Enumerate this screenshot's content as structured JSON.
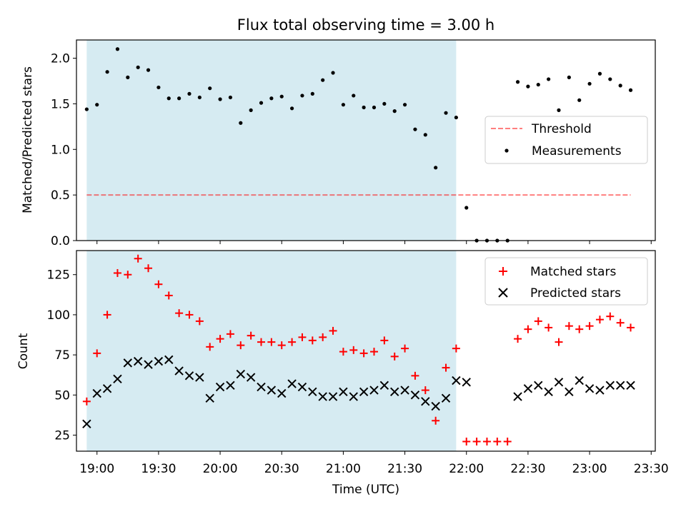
{
  "colors": {
    "shade": "#add8e6",
    "threshold": "#ff0000",
    "measurement": "#000000",
    "matched": "#ff0000",
    "predicted": "#000000"
  },
  "chart_data": [
    {
      "type": "scatter",
      "title": "Flux total observing time = 3.00 h",
      "ylabel": "Matched/Predicted stars",
      "xlabel": "",
      "xlim": [
        "18:50",
        "23:32"
      ],
      "ylim": [
        0,
        2.2
      ],
      "yticks": [
        "0.0",
        "0.5",
        "1.0",
        "1.5",
        "2.0"
      ],
      "ytick_values": [
        0,
        0.5,
        1.0,
        1.5,
        2.0
      ],
      "shaded_region": [
        "18:55",
        "21:55"
      ],
      "threshold": {
        "name": "Threshold",
        "y": 0.5,
        "x_start": "18:55",
        "x_end": "23:20",
        "style": "dashed"
      },
      "series": [
        {
          "name": "Measurements",
          "x": [
            "18:55",
            "19:00",
            "19:05",
            "19:10",
            "19:15",
            "19:20",
            "19:25",
            "19:30",
            "19:35",
            "19:40",
            "19:45",
            "19:50",
            "19:55",
            "20:00",
            "20:05",
            "20:10",
            "20:15",
            "20:20",
            "20:25",
            "20:30",
            "20:35",
            "20:40",
            "20:45",
            "20:50",
            "20:55",
            "21:00",
            "21:05",
            "21:10",
            "21:15",
            "21:20",
            "21:25",
            "21:30",
            "21:35",
            "21:40",
            "21:45",
            "21:50",
            "21:55",
            "22:00",
            "22:05",
            "22:10",
            "22:15",
            "22:20",
            "22:25",
            "22:30",
            "22:35",
            "22:40",
            "22:45",
            "22:50",
            "22:55",
            "23:00",
            "23:05",
            "23:10",
            "23:15",
            "23:20"
          ],
          "y": [
            1.44,
            1.49,
            1.85,
            2.1,
            1.79,
            1.9,
            1.87,
            1.68,
            1.56,
            1.56,
            1.61,
            1.57,
            1.67,
            1.55,
            1.57,
            1.29,
            1.43,
            1.51,
            1.56,
            1.58,
            1.45,
            1.59,
            1.61,
            1.76,
            1.84,
            1.49,
            1.59,
            1.46,
            1.46,
            1.5,
            1.42,
            1.49,
            1.22,
            1.16,
            0.8,
            1.4,
            1.35,
            0.36,
            0.0,
            0.0,
            0.0,
            0.0,
            1.74,
            1.69,
            1.71,
            1.77,
            1.43,
            1.79,
            1.54,
            1.72,
            1.83,
            1.77,
            1.7,
            1.65
          ]
        }
      ],
      "legend": "center-right"
    },
    {
      "type": "scatter",
      "title": "",
      "ylabel": "Count",
      "xlabel": "Time (UTC)",
      "xlim": [
        "18:50",
        "23:32"
      ],
      "ylim": [
        15,
        140
      ],
      "yticks": [
        "25",
        "50",
        "75",
        "100",
        "125"
      ],
      "ytick_values": [
        25,
        50,
        75,
        100,
        125
      ],
      "xticks": [
        "19:00",
        "19:30",
        "20:00",
        "20:30",
        "21:00",
        "21:30",
        "22:00",
        "22:30",
        "23:00",
        "23:30"
      ],
      "shaded_region": [
        "18:55",
        "21:55"
      ],
      "series": [
        {
          "name": "Matched stars",
          "marker": "plus",
          "x": [
            "18:55",
            "19:00",
            "19:05",
            "19:10",
            "19:15",
            "19:20",
            "19:25",
            "19:30",
            "19:35",
            "19:40",
            "19:45",
            "19:50",
            "19:55",
            "20:00",
            "20:05",
            "20:10",
            "20:15",
            "20:20",
            "20:25",
            "20:30",
            "20:35",
            "20:40",
            "20:45",
            "20:50",
            "20:55",
            "21:00",
            "21:05",
            "21:10",
            "21:15",
            "21:20",
            "21:25",
            "21:30",
            "21:35",
            "21:40",
            "21:45",
            "21:50",
            "21:55",
            "22:00",
            "22:05",
            "22:10",
            "22:15",
            "22:20",
            "22:25",
            "22:30",
            "22:35",
            "22:40",
            "22:45",
            "22:50",
            "22:55",
            "23:00",
            "23:05",
            "23:10",
            "23:15",
            "23:20"
          ],
          "y": [
            46,
            76,
            100,
            126,
            125,
            135,
            129,
            119,
            112,
            101,
            100,
            96,
            80,
            85,
            88,
            81,
            87,
            83,
            83,
            81,
            83,
            86,
            84,
            86,
            90,
            77,
            78,
            76,
            77,
            84,
            74,
            79,
            62,
            53,
            34,
            67,
            79,
            21,
            21,
            21,
            21,
            21,
            85,
            91,
            96,
            92,
            83,
            93,
            91,
            93,
            97,
            99,
            95,
            92
          ]
        },
        {
          "name": "Predicted stars",
          "marker": "x",
          "x": [
            "18:55",
            "19:00",
            "19:05",
            "19:10",
            "19:15",
            "19:20",
            "19:25",
            "19:30",
            "19:35",
            "19:40",
            "19:45",
            "19:50",
            "19:55",
            "20:00",
            "20:05",
            "20:10",
            "20:15",
            "20:20",
            "20:25",
            "20:30",
            "20:35",
            "20:40",
            "20:45",
            "20:50",
            "20:55",
            "21:00",
            "21:05",
            "21:10",
            "21:15",
            "21:20",
            "21:25",
            "21:30",
            "21:35",
            "21:40",
            "21:45",
            "21:50",
            "21:55",
            "22:00",
            "22:25",
            "22:30",
            "22:35",
            "22:40",
            "22:45",
            "22:50",
            "22:55",
            "23:00",
            "23:05",
            "23:10",
            "23:15",
            "23:20"
          ],
          "y": [
            32,
            51,
            54,
            60,
            70,
            71,
            69,
            71,
            72,
            65,
            62,
            61,
            48,
            55,
            56,
            63,
            61,
            55,
            53,
            51,
            57,
            55,
            52,
            49,
            49,
            52,
            49,
            52,
            53,
            56,
            52,
            53,
            50,
            46,
            43,
            48,
            59,
            58,
            49,
            54,
            56,
            52,
            58,
            52,
            59,
            54,
            53,
            56,
            56,
            56
          ]
        }
      ],
      "legend": "top-right"
    }
  ]
}
